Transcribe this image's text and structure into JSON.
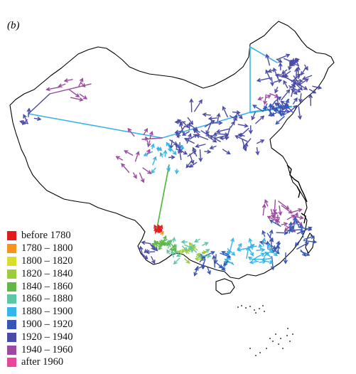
{
  "panel_label": "(b)",
  "legend": {
    "items": [
      {
        "label": "before 1780",
        "color": "#e31a1c"
      },
      {
        "label": "1780 – 1800",
        "color": "#f7941d"
      },
      {
        "label": "1800 – 1820",
        "color": "#d8de2b"
      },
      {
        "label": "1820 – 1840",
        "color": "#9ccc3c"
      },
      {
        "label": "1840 – 1860",
        "color": "#5fb846"
      },
      {
        "label": "1860 – 1880",
        "color": "#5ec6a0"
      },
      {
        "label": "1880 – 1900",
        "color": "#37b5ea"
      },
      {
        "label": "1900 – 1920",
        "color": "#3656b7"
      },
      {
        "label": "1920 – 1940",
        "color": "#4a4aa8"
      },
      {
        "label": "1940 – 1960",
        "color": "#9a4a9f"
      },
      {
        "label": "after 1960",
        "color": "#e8469a"
      }
    ]
  }
}
